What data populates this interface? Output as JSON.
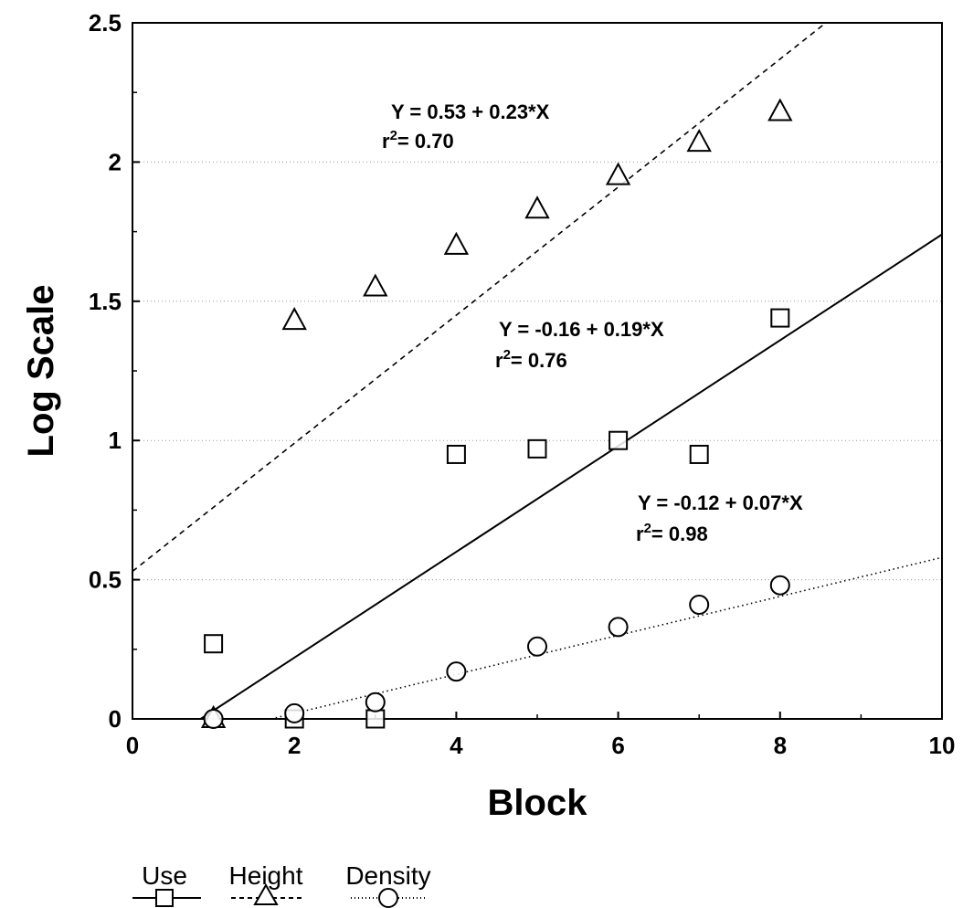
{
  "chart_data": {
    "type": "scatter",
    "xlabel": "Block",
    "ylabel": "Log Scale",
    "xlim": [
      0,
      10
    ],
    "ylim": [
      0,
      2.5
    ],
    "x_ticks": [
      0,
      2,
      4,
      6,
      8,
      10
    ],
    "y_ticks": [
      0,
      0.5,
      1,
      1.5,
      2,
      2.5
    ],
    "y_tick_labels": [
      "0",
      "0.5",
      "1",
      "1.5",
      "2",
      "2.5"
    ],
    "grid": "horizontal dotted",
    "legend_placement": "bottom-left, below plot",
    "series": [
      {
        "name": "Use",
        "marker": "square",
        "line_style": "solid",
        "x": [
          1,
          2,
          3,
          4,
          5,
          6,
          7,
          8
        ],
        "y": [
          0.27,
          0.0,
          0.0,
          0.95,
          0.97,
          1.0,
          0.95,
          1.44
        ],
        "fit": {
          "intercept": -0.16,
          "slope": 0.19
        },
        "equation": "Y = -0.16 + 0.19*X",
        "r2_label": "r",
        "r2_value": "= 0.76"
      },
      {
        "name": "Height",
        "marker": "triangle",
        "line_style": "dashed",
        "x": [
          1,
          2,
          3,
          4,
          5,
          6,
          7,
          8
        ],
        "y": [
          0.0,
          1.43,
          1.55,
          1.7,
          1.83,
          1.95,
          2.07,
          2.18
        ],
        "fit": {
          "intercept": 0.53,
          "slope": 0.23
        },
        "equation": "Y = 0.53 + 0.23*X",
        "r2_label": "r",
        "r2_value": "= 0.70"
      },
      {
        "name": "Density",
        "marker": "circle",
        "line_style": "dotted",
        "x": [
          1,
          2,
          3,
          4,
          5,
          6,
          7,
          8
        ],
        "y": [
          0.0,
          0.02,
          0.06,
          0.17,
          0.26,
          0.33,
          0.41,
          0.48
        ],
        "fit": {
          "intercept": -0.12,
          "slope": 0.07
        },
        "equation": "Y = -0.12 + 0.07*X",
        "r2_label": "r",
        "r2_value": "= 0.98"
      }
    ]
  }
}
